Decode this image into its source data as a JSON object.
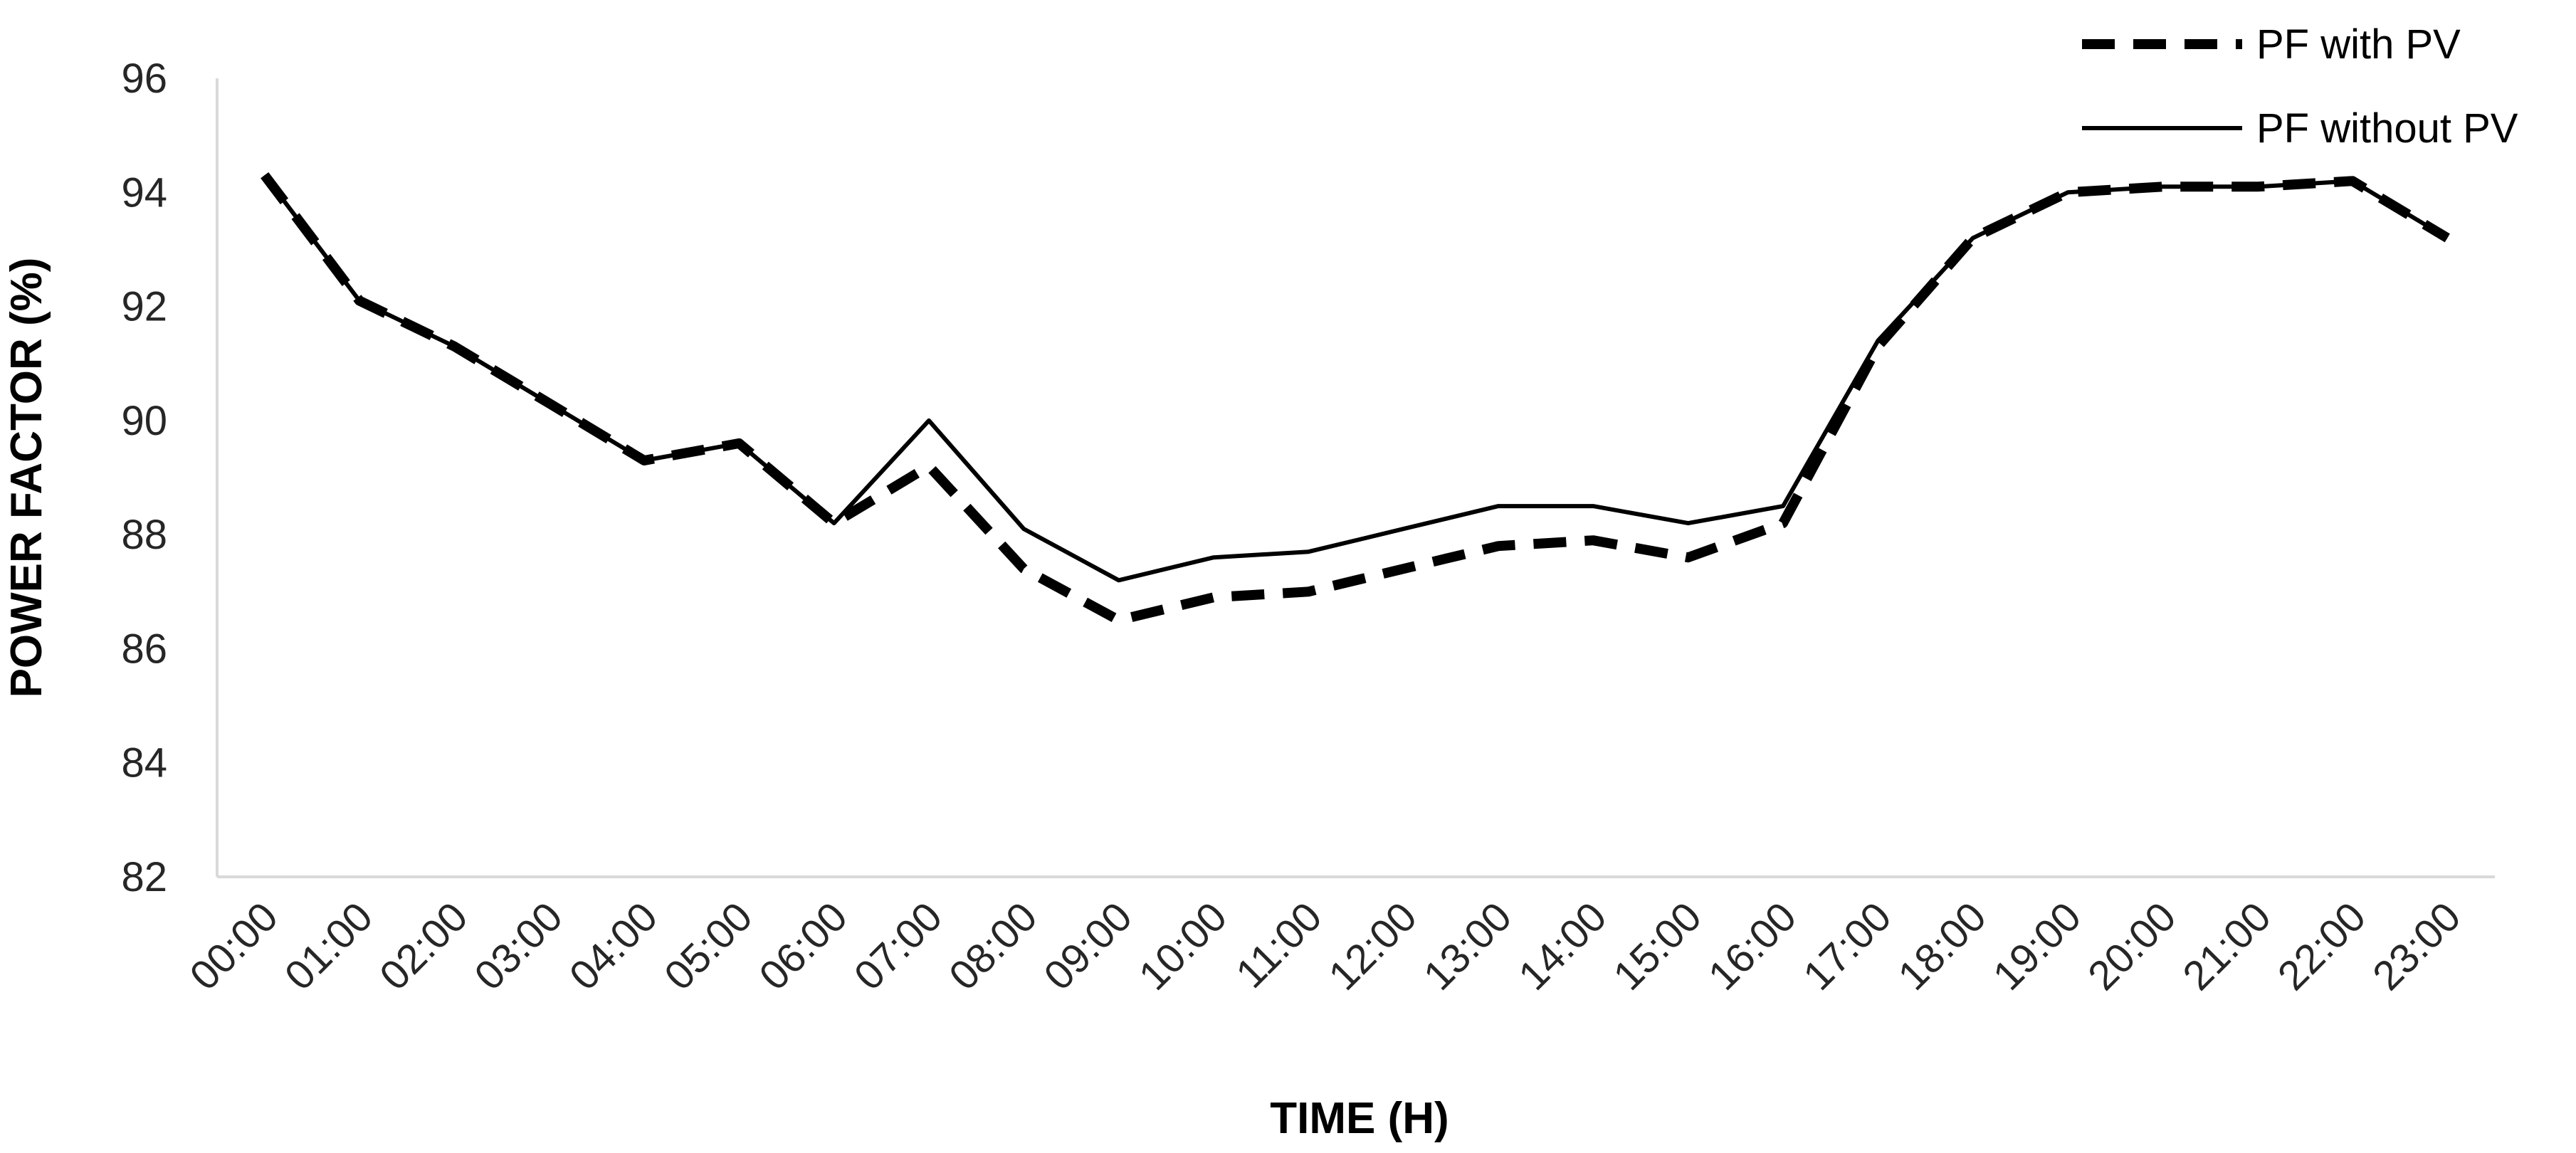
{
  "chart_data": {
    "type": "line",
    "title": "",
    "xlabel": "TIME (H)",
    "ylabel": "POWER FACTOR (%)",
    "ylim": [
      82,
      96
    ],
    "yticks": [
      82,
      84,
      86,
      88,
      90,
      92,
      94,
      96
    ],
    "grid": false,
    "legend_position": "top-right",
    "categories": [
      "00:00",
      "01:00",
      "02:00",
      "03:00",
      "04:00",
      "05:00",
      "06:00",
      "07:00",
      "08:00",
      "09:00",
      "10:00",
      "11:00",
      "12:00",
      "13:00",
      "14:00",
      "15:00",
      "16:00",
      "17:00",
      "18:00",
      "19:00",
      "20:00",
      "21:00",
      "22:00",
      "23:00"
    ],
    "series": [
      {
        "name": "PF with PV",
        "style": "dashed",
        "color": "#000000",
        "values": [
          94.3,
          92.1,
          91.3,
          90.3,
          89.3,
          89.6,
          88.2,
          89.2,
          87.4,
          86.5,
          86.9,
          87.0,
          87.4,
          87.8,
          87.9,
          87.6,
          88.2,
          91.3,
          93.2,
          94.0,
          94.1,
          94.1,
          94.2,
          93.2
        ]
      },
      {
        "name": "PF without PV",
        "style": "solid",
        "color": "#000000",
        "values": [
          94.3,
          92.1,
          91.3,
          90.3,
          89.3,
          89.6,
          88.2,
          90.0,
          88.1,
          87.2,
          87.6,
          87.7,
          88.1,
          88.5,
          88.5,
          88.2,
          88.5,
          91.4,
          93.2,
          94.0,
          94.1,
          94.1,
          94.2,
          93.2
        ]
      }
    ]
  }
}
